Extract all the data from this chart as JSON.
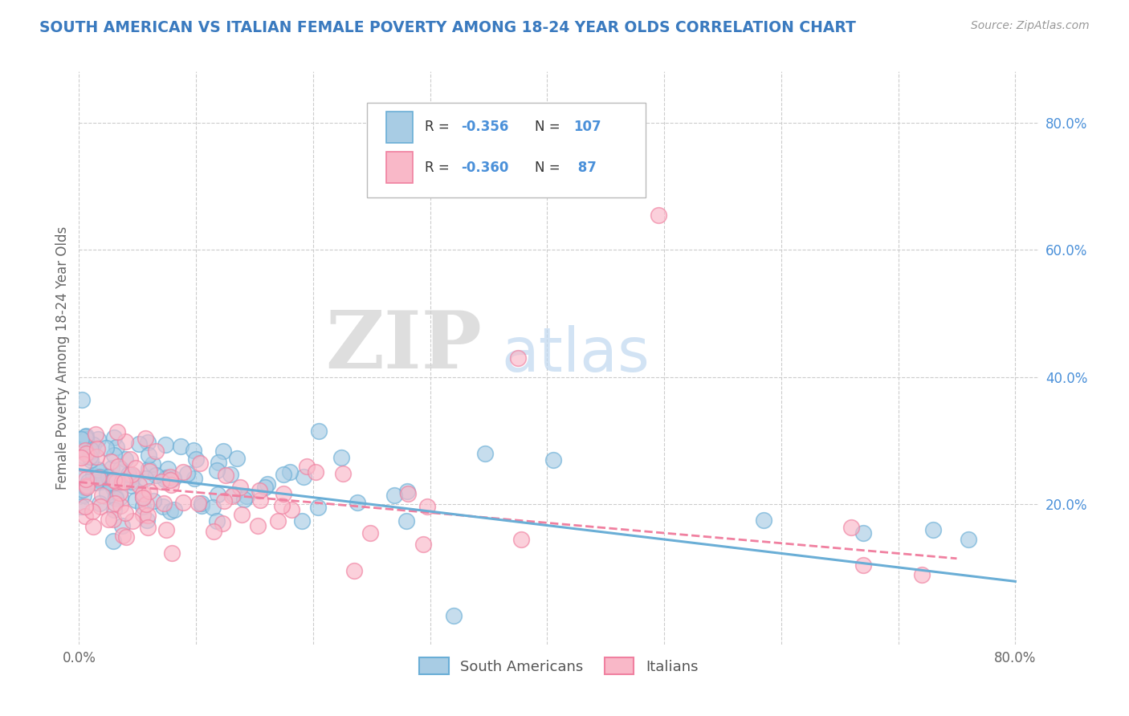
{
  "title": "SOUTH AMERICAN VS ITALIAN FEMALE POVERTY AMONG 18-24 YEAR OLDS CORRELATION CHART",
  "source": "Source: ZipAtlas.com",
  "ylabel": "Female Poverty Among 18-24 Year Olds",
  "xlim": [
    0.0,
    0.82
  ],
  "ylim": [
    -0.02,
    0.88
  ],
  "sa_color": "#6aaed6",
  "sa_fill": "#a8cce4",
  "it_color": "#f080a0",
  "it_fill": "#f9b8c8",
  "watermark_zip": "ZIP",
  "watermark_atlas": "atlas",
  "watermark_zip_color": "#d0d0d0",
  "watermark_atlas_color": "#c0d8f0",
  "title_color": "#3a7abf",
  "text_color": "#4a90d9",
  "ylabel_color": "#666666",
  "background_color": "#ffffff",
  "grid_color": "#cccccc",
  "sa_trend_slope": -0.22,
  "sa_trend_intercept": 0.255,
  "it_trend_slope": -0.16,
  "it_trend_intercept": 0.235,
  "it_trend_x_end": 0.75,
  "sa_n": 107,
  "it_n": 87,
  "sa_seed": 42,
  "it_seed": 77
}
